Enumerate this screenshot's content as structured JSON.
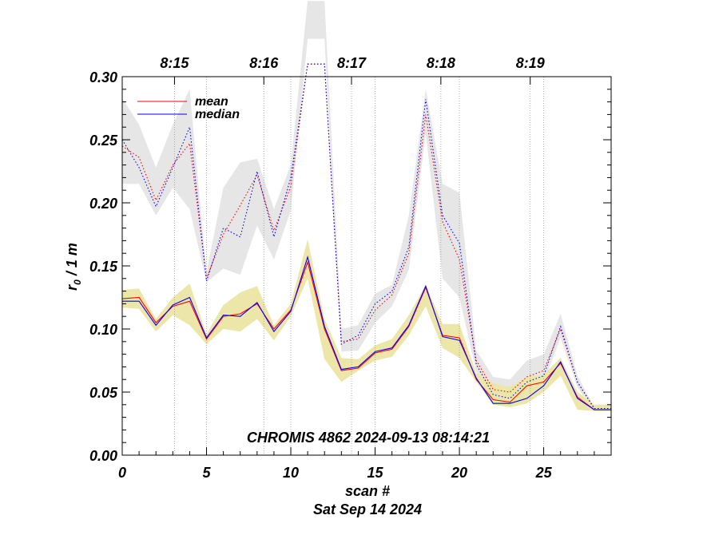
{
  "chart_data": {
    "type": "line",
    "ylabel": "r",
    "ylabel_sub": "0",
    "ylabel_rest": " / 1 m",
    "xlabel": "scan #",
    "date_label": "Sat Sep 14 2024",
    "annotation": "CHROMIS 4862 2024-09-13 08:14:21",
    "xlim": [
      0,
      29
    ],
    "ylim": [
      0.0,
      0.3
    ],
    "x_ticks": [
      0,
      5,
      10,
      15,
      20,
      25
    ],
    "x_tick_labels": [
      "0",
      "5",
      "10",
      "15",
      "20",
      "25"
    ],
    "y_ticks": [
      0.0,
      0.05,
      0.1,
      0.15,
      0.2,
      0.25,
      0.3
    ],
    "y_tick_labels": [
      "0.00",
      "0.05",
      "0.10",
      "0.15",
      "0.20",
      "0.25",
      "0.30"
    ],
    "time_ticks": [
      {
        "x": 3.1,
        "label": "8:15"
      },
      {
        "x": 8.4,
        "label": "8:16"
      },
      {
        "x": 13.6,
        "label": "8:17"
      },
      {
        "x": 18.9,
        "label": "8:18"
      },
      {
        "x": 24.2,
        "label": "8:19"
      }
    ],
    "vertical_gridlines": [
      5,
      10,
      15,
      20,
      25,
      3.1,
      8.4,
      13.6,
      18.9,
      24.2
    ],
    "legend": [
      {
        "name": "mean",
        "color": "#ff0000"
      },
      {
        "name": "median",
        "color": "#0000ff"
      }
    ],
    "x": [
      0,
      1,
      2,
      3,
      4,
      5,
      6,
      7,
      8,
      9,
      10,
      11,
      12,
      13,
      14,
      15,
      16,
      17,
      18,
      19,
      20,
      21,
      22,
      23,
      24,
      25,
      26,
      27,
      28,
      29
    ],
    "series": [
      {
        "name": "mean",
        "style": "solid",
        "color": "#ff0000",
        "values": [
          0.124,
          0.125,
          0.105,
          0.118,
          0.122,
          0.092,
          0.11,
          0.112,
          0.12,
          0.1,
          0.115,
          0.153,
          0.1,
          0.067,
          0.069,
          0.081,
          0.084,
          0.102,
          0.133,
          0.095,
          0.093,
          0.06,
          0.044,
          0.042,
          0.055,
          0.058,
          0.073,
          0.046,
          0.036,
          0.036
        ]
      },
      {
        "name": "median",
        "style": "solid",
        "color": "#0000ff",
        "values": [
          0.122,
          0.122,
          0.103,
          0.119,
          0.125,
          0.093,
          0.111,
          0.11,
          0.121,
          0.098,
          0.114,
          0.157,
          0.102,
          0.068,
          0.07,
          0.082,
          0.085,
          0.103,
          0.134,
          0.094,
          0.091,
          0.061,
          0.041,
          0.041,
          0.045,
          0.055,
          0.074,
          0.045,
          0.036,
          0.036
        ]
      },
      {
        "name": "mean (upper)",
        "style": "dotted",
        "color": "#ff0000",
        "values": [
          0.245,
          0.236,
          0.202,
          0.23,
          0.247,
          0.14,
          0.175,
          0.198,
          0.222,
          0.178,
          0.213,
          0.31,
          0.31,
          0.09,
          0.092,
          0.115,
          0.127,
          0.16,
          0.27,
          0.185,
          0.155,
          0.075,
          0.052,
          0.05,
          0.062,
          0.067,
          0.1,
          0.058,
          0.037,
          0.037
        ]
      },
      {
        "name": "median (upper)",
        "style": "dotted",
        "color": "#0000ff",
        "values": [
          0.25,
          0.228,
          0.197,
          0.228,
          0.26,
          0.138,
          0.18,
          0.173,
          0.225,
          0.173,
          0.22,
          0.31,
          0.31,
          0.088,
          0.095,
          0.12,
          0.13,
          0.165,
          0.282,
          0.19,
          0.168,
          0.072,
          0.048,
          0.045,
          0.058,
          0.063,
          0.102,
          0.058,
          0.037,
          0.037
        ]
      }
    ],
    "bands": [
      {
        "name": "upper spread",
        "color": "#e6e6e6",
        "lower": [
          0.215,
          0.215,
          0.19,
          0.212,
          0.195,
          0.137,
          0.148,
          0.143,
          0.182,
          0.155,
          0.194,
          0.33,
          0.33,
          0.082,
          0.083,
          0.105,
          0.118,
          0.147,
          0.255,
          0.14,
          0.125,
          0.066,
          0.046,
          0.043,
          0.052,
          0.058,
          0.093,
          0.054,
          0.035,
          0.035
        ],
        "upper": [
          0.283,
          0.262,
          0.228,
          0.262,
          0.29,
          0.145,
          0.212,
          0.232,
          0.235,
          0.195,
          0.23,
          0.36,
          0.36,
          0.1,
          0.103,
          0.128,
          0.135,
          0.19,
          0.29,
          0.215,
          0.208,
          0.083,
          0.062,
          0.06,
          0.075,
          0.08,
          0.112,
          0.063,
          0.038,
          0.038
        ]
      },
      {
        "name": "lower spread",
        "color": "#ece7a8",
        "lower": [
          0.117,
          0.116,
          0.098,
          0.111,
          0.103,
          0.088,
          0.1,
          0.098,
          0.108,
          0.091,
          0.11,
          0.14,
          0.076,
          0.058,
          0.067,
          0.075,
          0.078,
          0.095,
          0.118,
          0.085,
          0.077,
          0.058,
          0.04,
          0.038,
          0.041,
          0.05,
          0.063,
          0.036,
          0.035,
          0.035
        ],
        "upper": [
          0.131,
          0.132,
          0.108,
          0.125,
          0.136,
          0.096,
          0.119,
          0.129,
          0.134,
          0.103,
          0.12,
          0.171,
          0.108,
          0.077,
          0.076,
          0.087,
          0.092,
          0.111,
          0.135,
          0.104,
          0.104,
          0.065,
          0.057,
          0.054,
          0.062,
          0.064,
          0.077,
          0.05,
          0.04,
          0.04
        ]
      }
    ]
  }
}
